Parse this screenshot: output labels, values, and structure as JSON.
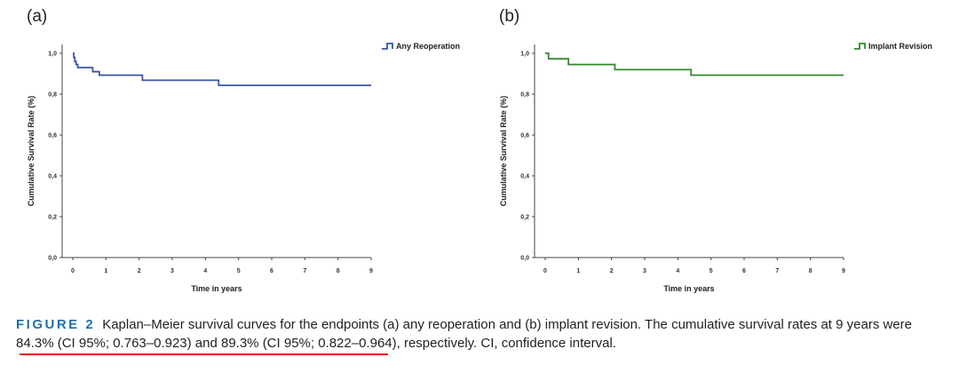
{
  "figure": {
    "label": "FIGURE 2",
    "caption": "Kaplan–Meier survival curves for the endpoints (a) any reoperation and (b) implant revision. The cumulative survival rates at 9 years were 84.3% (CI 95%; 0.763–0.923) and 89.3% (CI 95%; 0.822–0.964), respectively. CI, confidence interval.",
    "highlight_color": "#e01010",
    "label_color": "#1f6fb0"
  },
  "chart_data": [
    {
      "type": "line",
      "panel_label": "(a)",
      "xlabel": "Time in years",
      "ylabel": "Cumulative Survival Rate (%)",
      "xlim": [
        0,
        9
      ],
      "ylim": [
        0,
        1
      ],
      "x_ticks": [
        "0",
        "1",
        "2",
        "3",
        "4",
        "5",
        "6",
        "7",
        "8",
        "9"
      ],
      "y_ticks": [
        "0,0",
        "0,2",
        "0,4",
        "0,6",
        "0,8",
        "1,0"
      ],
      "legend_position": "top-right",
      "series": [
        {
          "name": "Any Reoperation",
          "color": "#3a55a8",
          "step": true,
          "x": [
            0,
            0.03,
            0.06,
            0.1,
            0.15,
            0.6,
            0.8,
            2.1,
            4.4,
            9
          ],
          "y": [
            1.0,
            0.98,
            0.96,
            0.945,
            0.93,
            0.91,
            0.893,
            0.868,
            0.843,
            0.843
          ]
        }
      ]
    },
    {
      "type": "line",
      "panel_label": "(b)",
      "xlabel": "Time in years",
      "ylabel": "Cumulative Survival Rate (%)",
      "xlim": [
        0,
        9
      ],
      "ylim": [
        0,
        1
      ],
      "x_ticks": [
        "0",
        "1",
        "2",
        "3",
        "4",
        "5",
        "6",
        "7",
        "8",
        "9"
      ],
      "y_ticks": [
        "0,0",
        "0,2",
        "0,4",
        "0,6",
        "0,8",
        "1,0"
      ],
      "legend_position": "top-right",
      "series": [
        {
          "name": "Implant Revision",
          "color": "#2e8b2e",
          "step": true,
          "x": [
            0,
            0.1,
            0.7,
            2.1,
            4.4,
            9
          ],
          "y": [
            1.0,
            0.973,
            0.945,
            0.92,
            0.893,
            0.893
          ]
        }
      ]
    }
  ]
}
